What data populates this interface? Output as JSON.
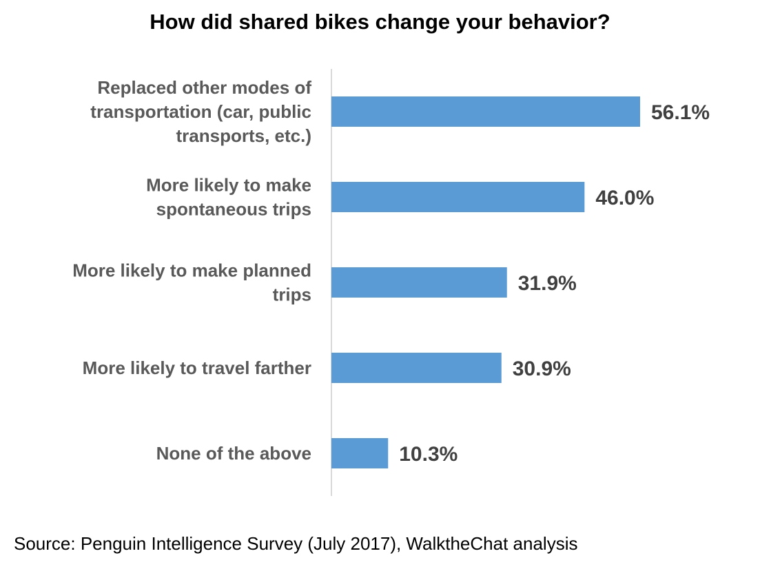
{
  "chart_data": {
    "type": "bar",
    "orientation": "horizontal",
    "title": "How did shared bikes change your behavior?",
    "categories": [
      [
        "Replaced other modes of",
        "transportation (car, public",
        "transports, etc.)"
      ],
      [
        "More likely to make",
        "spontaneous trips"
      ],
      [
        "More likely to make planned",
        "trips"
      ],
      [
        "More likely to travel farther"
      ],
      [
        "None of the above"
      ]
    ],
    "values": [
      56.1,
      46.0,
      31.9,
      30.9,
      10.3
    ],
    "value_labels": [
      "56.1%",
      "46.0%",
      "31.9%",
      "30.9%",
      "10.3%"
    ],
    "xlim": [
      0,
      70
    ],
    "xlabel": "",
    "ylabel": "",
    "grid": false,
    "legend": "none"
  },
  "source": "Source: Penguin Intelligence Survey (July 2017), WalktheChat analysis",
  "colors": {
    "bar": "#5b9bd5",
    "category_text": "#595959",
    "value_text": "#404040",
    "axis": "#d9d9d9"
  }
}
